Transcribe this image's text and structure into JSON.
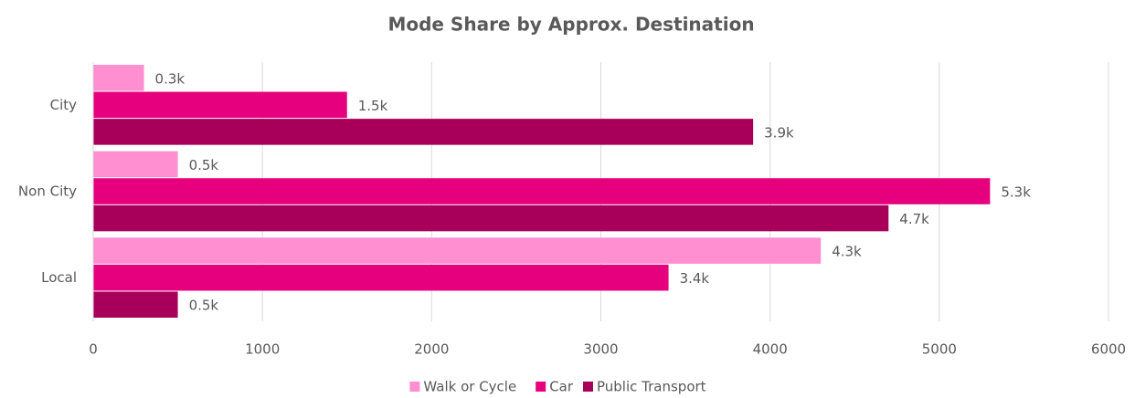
{
  "chart_data": {
    "type": "bar",
    "orientation": "horizontal",
    "title": "Mode Share by Approx. Destination",
    "categories": [
      "City",
      "Non City",
      "Local"
    ],
    "series": [
      {
        "name": "Walk or Cycle",
        "color": "#ff8fd0",
        "values": [
          300,
          500,
          4300
        ],
        "value_labels": [
          "0.3k",
          "0.5k",
          "4.3k"
        ]
      },
      {
        "name": "Car",
        "color": "#e6007e",
        "values": [
          1500,
          5300,
          3400
        ],
        "value_labels": [
          "1.5k",
          "5.3k",
          "3.4k"
        ]
      },
      {
        "name": "Public Transport",
        "color": "#a8005a",
        "values": [
          3900,
          4700,
          500
        ],
        "value_labels": [
          "3.9k",
          "4.7k",
          "0.5k"
        ]
      }
    ],
    "xlim": [
      0,
      6000
    ],
    "xticks": [
      0,
      1000,
      2000,
      3000,
      4000,
      5000,
      6000
    ],
    "grid": true,
    "legend": "bottom"
  }
}
